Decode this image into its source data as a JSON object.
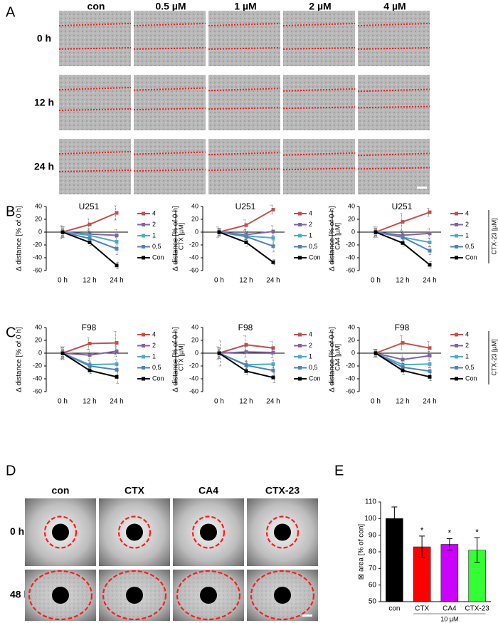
{
  "panel_labels": [
    "A",
    "B",
    "C",
    "D",
    "E"
  ],
  "figure_a": {
    "columns": [
      "con",
      "0.5 µM",
      "1 µM",
      "2 µM",
      "4 µM"
    ],
    "rows": [
      "0 h",
      "12 h",
      "24 h"
    ]
  },
  "figure_d": {
    "columns": [
      "con",
      "CTX",
      "CA4",
      "CTX-23"
    ],
    "rows": [
      "0 h",
      "48 h"
    ]
  },
  "chart_data": [
    {
      "type": "line",
      "title": "U251",
      "y_label": "∆ distance [% of 0 h]",
      "categories": [
        "0 h",
        "12 h",
        "24 h"
      ],
      "ylim": [
        -60,
        40
      ],
      "yticks": [
        -60,
        -40,
        -20,
        0,
        20,
        40
      ],
      "legend_title": "CTX [µM]",
      "series": [
        {
          "name": "4",
          "color": "#c0504d",
          "values": [
            0,
            12,
            30
          ],
          "errors": [
            10,
            9,
            11
          ]
        },
        {
          "name": "2",
          "color": "#8064a2",
          "values": [
            0,
            -3,
            -5
          ],
          "errors": [
            8,
            8,
            9
          ]
        },
        {
          "name": "1",
          "color": "#4bacc6",
          "values": [
            0,
            -5,
            -15
          ],
          "errors": [
            8,
            6,
            7
          ]
        },
        {
          "name": "0,5",
          "color": "#4f81bd",
          "values": [
            0,
            -10,
            -26
          ],
          "errors": [
            8,
            7,
            9
          ]
        },
        {
          "name": "Con",
          "color": "#000000",
          "values": [
            0,
            -16,
            -52
          ],
          "errors": [
            8,
            5,
            5
          ]
        }
      ]
    },
    {
      "type": "line",
      "title": "U251",
      "y_label": "∆ distance [% of 0 h]",
      "categories": [
        "0 h",
        "12 h",
        "24 h"
      ],
      "ylim": [
        -60,
        40
      ],
      "yticks": [
        -60,
        -40,
        -20,
        0,
        20,
        40
      ],
      "legend_title": "CA4 [µM]",
      "series": [
        {
          "name": "4",
          "color": "#c0504d",
          "values": [
            0,
            11,
            35
          ],
          "errors": [
            8,
            8,
            7
          ]
        },
        {
          "name": "2",
          "color": "#8064a2",
          "values": [
            0,
            -4,
            1
          ],
          "errors": [
            6,
            8,
            9
          ]
        },
        {
          "name": "1",
          "color": "#4bacc6",
          "values": [
            0,
            -6,
            -9
          ],
          "errors": [
            6,
            6,
            8
          ]
        },
        {
          "name": "0,5",
          "color": "#4f81bd",
          "values": [
            0,
            -7,
            -22
          ],
          "errors": [
            6,
            8,
            9
          ]
        },
        {
          "name": "Con",
          "color": "#000000",
          "values": [
            0,
            -16,
            -47
          ],
          "errors": [
            6,
            6,
            4
          ]
        }
      ]
    },
    {
      "type": "line",
      "title": "U251",
      "y_label": "∆ distance [% of 0 h]",
      "categories": [
        "0 h",
        "12 h",
        "24 h"
      ],
      "ylim": [
        -60,
        40
      ],
      "yticks": [
        -60,
        -40,
        -20,
        0,
        20,
        40
      ],
      "legend_title": "CTX-23 [µM]",
      "series": [
        {
          "name": "4",
          "color": "#c0504d",
          "values": [
            0,
            16,
            31
          ],
          "errors": [
            8,
            13,
            6
          ]
        },
        {
          "name": "2",
          "color": "#8064a2",
          "values": [
            0,
            -5,
            -2
          ],
          "errors": [
            6,
            6,
            8
          ]
        },
        {
          "name": "1",
          "color": "#4bacc6",
          "values": [
            0,
            -8,
            -16
          ],
          "errors": [
            6,
            7,
            7
          ]
        },
        {
          "name": "0,5",
          "color": "#4f81bd",
          "values": [
            0,
            -8,
            -29
          ],
          "errors": [
            6,
            8,
            6
          ]
        },
        {
          "name": "Con",
          "color": "#000000",
          "values": [
            0,
            -17,
            -51
          ],
          "errors": [
            8,
            5,
            5
          ]
        }
      ]
    },
    {
      "type": "line",
      "title": "F98",
      "y_label": "∆ distance [% of 0 h]",
      "categories": [
        "0 h",
        "12 h",
        "24 h"
      ],
      "ylim": [
        -60,
        40
      ],
      "yticks": [
        -60,
        -40,
        -20,
        0,
        20,
        40
      ],
      "legend_title": "CTX [µM]",
      "series": [
        {
          "name": "4",
          "color": "#c0504d",
          "values": [
            0,
            15,
            16
          ],
          "errors": [
            10,
            9,
            18
          ]
        },
        {
          "name": "2",
          "color": "#8064a2",
          "values": [
            0,
            -3,
            3
          ],
          "errors": [
            8,
            8,
            8
          ]
        },
        {
          "name": "1",
          "color": "#4bacc6",
          "values": [
            0,
            -18,
            -17
          ],
          "errors": [
            8,
            6,
            7
          ]
        },
        {
          "name": "0,5",
          "color": "#4f81bd",
          "values": [
            0,
            -20,
            -26
          ],
          "errors": [
            8,
            6,
            8
          ]
        },
        {
          "name": "Con",
          "color": "#000000",
          "values": [
            0,
            -27,
            -37
          ],
          "errors": [
            10,
            5,
            10
          ]
        }
      ]
    },
    {
      "type": "line",
      "title": "F98",
      "y_label": "∆ distance [% of 0 h]",
      "categories": [
        "0 h",
        "12 h",
        "24 h"
      ],
      "ylim": [
        -60,
        40
      ],
      "yticks": [
        -60,
        -40,
        -20,
        0,
        20,
        40
      ],
      "legend_title": "CA4 [µM]",
      "series": [
        {
          "name": "4",
          "color": "#c0504d",
          "values": [
            0,
            13,
            8
          ],
          "errors": [
            10,
            14,
            10
          ]
        },
        {
          "name": "2",
          "color": "#8064a2",
          "values": [
            0,
            2,
            1
          ],
          "errors": [
            8,
            8,
            8
          ]
        },
        {
          "name": "1",
          "color": "#4bacc6",
          "values": [
            0,
            -18,
            -17
          ],
          "errors": [
            8,
            6,
            6
          ]
        },
        {
          "name": "0,5",
          "color": "#4f81bd",
          "values": [
            0,
            -19,
            -27
          ],
          "errors": [
            8,
            6,
            8
          ]
        },
        {
          "name": "Con",
          "color": "#000000",
          "values": [
            0,
            -28,
            -38
          ],
          "errors": [
            20,
            6,
            8
          ]
        }
      ]
    },
    {
      "type": "line",
      "title": "F98",
      "y_label": "∆ distance [% of 0 h]",
      "categories": [
        "0 h",
        "12 h",
        "24 h"
      ],
      "ylim": [
        -60,
        40
      ],
      "yticks": [
        -60,
        -40,
        -20,
        0,
        20,
        40
      ],
      "legend_title": "CTX-23 [µM]",
      "series": [
        {
          "name": "4",
          "color": "#c0504d",
          "values": [
            0,
            16,
            8
          ],
          "errors": [
            6,
            11,
            10
          ]
        },
        {
          "name": "2",
          "color": "#8064a2",
          "values": [
            0,
            -10,
            -4
          ],
          "errors": [
            6,
            7,
            7
          ]
        },
        {
          "name": "1",
          "color": "#4bacc6",
          "values": [
            0,
            -18,
            -17
          ],
          "errors": [
            6,
            6,
            6
          ]
        },
        {
          "name": "0,5",
          "color": "#4f81bd",
          "values": [
            0,
            -22,
            -28
          ],
          "errors": [
            6,
            6,
            6
          ]
        },
        {
          "name": "Con",
          "color": "#000000",
          "values": [
            0,
            -27,
            -37
          ],
          "errors": [
            6,
            6,
            6
          ]
        }
      ]
    },
    {
      "type": "bar",
      "y_label": "⊠ area [% of con]",
      "categories": [
        "con",
        "CTX",
        "CA4",
        "CTX-23"
      ],
      "values": [
        100,
        83,
        84.5,
        81
      ],
      "errors": [
        7,
        6.5,
        3.5,
        7.5
      ],
      "colors": [
        "#000000",
        "#ff0000",
        "#cc00ff",
        "#33ff33"
      ],
      "significance": [
        null,
        "*",
        "*",
        "*"
      ],
      "group_label": "10 µM",
      "ylim": [
        50,
        110
      ],
      "yticks": [
        50,
        60,
        70,
        80,
        90,
        100,
        110
      ]
    }
  ]
}
